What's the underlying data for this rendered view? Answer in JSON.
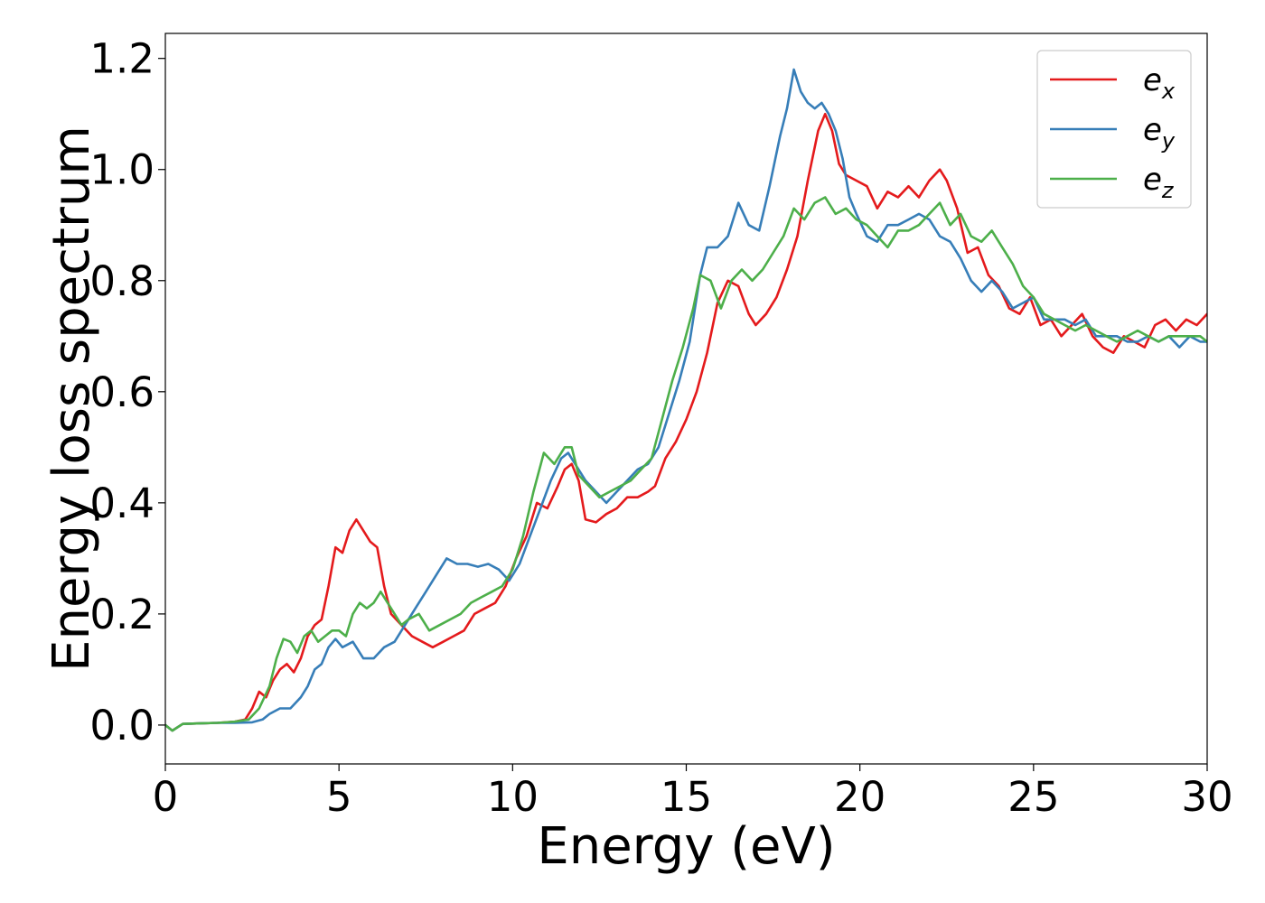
{
  "chart_data": {
    "type": "line",
    "title": "",
    "xlabel": "Energy (eV)",
    "ylabel": "Energy loss spectrum",
    "xlim": [
      0,
      30
    ],
    "ylim": [
      -0.07,
      1.245
    ],
    "grid": false,
    "legend_position": "top-right",
    "xticks": [
      0,
      5,
      10,
      15,
      20,
      25,
      30
    ],
    "xtick_labels": [
      "0",
      "5",
      "10",
      "15",
      "20",
      "25",
      "30"
    ],
    "yticks": [
      0.0,
      0.2,
      0.4,
      0.6,
      0.8,
      1.0,
      1.2
    ],
    "ytick_labels": [
      "0.0",
      "0.2",
      "0.4",
      "0.6",
      "0.8",
      "1.0",
      "1.2"
    ],
    "series": [
      {
        "name": "e",
        "subscript": "x",
        "color": "#e41a1c",
        "x": [
          0,
          0.2,
          0.5,
          1.0,
          1.5,
          2.0,
          2.3,
          2.5,
          2.7,
          2.9,
          3.1,
          3.3,
          3.5,
          3.7,
          3.9,
          4.1,
          4.3,
          4.5,
          4.7,
          4.9,
          5.1,
          5.3,
          5.5,
          5.7,
          5.9,
          6.1,
          6.3,
          6.5,
          6.8,
          7.1,
          7.4,
          7.7,
          8.0,
          8.3,
          8.6,
          8.9,
          9.2,
          9.5,
          9.8,
          10.1,
          10.4,
          10.7,
          11.0,
          11.3,
          11.5,
          11.7,
          11.9,
          12.1,
          12.4,
          12.7,
          13.0,
          13.3,
          13.6,
          13.9,
          14.1,
          14.4,
          14.7,
          15.0,
          15.3,
          15.6,
          15.9,
          16.2,
          16.5,
          16.8,
          17.0,
          17.3,
          17.6,
          17.9,
          18.2,
          18.5,
          18.8,
          19.0,
          19.2,
          19.4,
          19.6,
          19.9,
          20.2,
          20.5,
          20.8,
          21.1,
          21.4,
          21.7,
          22.0,
          22.3,
          22.5,
          22.8,
          23.1,
          23.4,
          23.7,
          24.0,
          24.3,
          24.6,
          24.9,
          25.2,
          25.5,
          25.8,
          26.1,
          26.4,
          26.7,
          27.0,
          27.3,
          27.6,
          27.9,
          28.2,
          28.5,
          28.8,
          29.1,
          29.4,
          29.7,
          30.0
        ],
        "y": [
          0.0,
          -0.01,
          0.002,
          0.003,
          0.004,
          0.006,
          0.01,
          0.03,
          0.06,
          0.05,
          0.08,
          0.1,
          0.11,
          0.095,
          0.12,
          0.16,
          0.18,
          0.19,
          0.25,
          0.32,
          0.31,
          0.35,
          0.37,
          0.35,
          0.33,
          0.32,
          0.25,
          0.2,
          0.18,
          0.16,
          0.15,
          0.14,
          0.15,
          0.16,
          0.17,
          0.2,
          0.21,
          0.22,
          0.25,
          0.3,
          0.34,
          0.4,
          0.39,
          0.43,
          0.46,
          0.47,
          0.44,
          0.37,
          0.365,
          0.38,
          0.39,
          0.41,
          0.41,
          0.42,
          0.43,
          0.48,
          0.51,
          0.55,
          0.6,
          0.67,
          0.76,
          0.8,
          0.79,
          0.74,
          0.72,
          0.74,
          0.77,
          0.82,
          0.88,
          0.98,
          1.07,
          1.1,
          1.07,
          1.01,
          0.99,
          0.98,
          0.97,
          0.93,
          0.96,
          0.95,
          0.97,
          0.95,
          0.98,
          1.0,
          0.98,
          0.93,
          0.85,
          0.86,
          0.81,
          0.79,
          0.75,
          0.74,
          0.77,
          0.72,
          0.73,
          0.7,
          0.72,
          0.74,
          0.7,
          0.68,
          0.67,
          0.7,
          0.69,
          0.68,
          0.72,
          0.73,
          0.71,
          0.73,
          0.72,
          0.74
        ]
      },
      {
        "name": "e",
        "subscript": "y",
        "color": "#377eb8",
        "x": [
          0,
          0.2,
          0.5,
          1.0,
          1.5,
          2.0,
          2.5,
          2.8,
          3.0,
          3.3,
          3.6,
          3.9,
          4.1,
          4.3,
          4.5,
          4.7,
          4.9,
          5.1,
          5.4,
          5.7,
          6.0,
          6.3,
          6.6,
          6.9,
          7.2,
          7.5,
          7.8,
          8.1,
          8.4,
          8.7,
          9.0,
          9.3,
          9.6,
          9.9,
          10.2,
          10.5,
          10.8,
          11.1,
          11.4,
          11.6,
          11.8,
          12.1,
          12.4,
          12.7,
          13.0,
          13.3,
          13.6,
          13.9,
          14.2,
          14.5,
          14.8,
          15.1,
          15.4,
          15.6,
          15.9,
          16.2,
          16.5,
          16.8,
          17.1,
          17.4,
          17.7,
          17.9,
          18.1,
          18.3,
          18.5,
          18.7,
          18.9,
          19.1,
          19.3,
          19.5,
          19.7,
          19.9,
          20.2,
          20.5,
          20.8,
          21.1,
          21.4,
          21.7,
          22.0,
          22.3,
          22.6,
          22.9,
          23.2,
          23.5,
          23.8,
          24.1,
          24.4,
          24.7,
          25.0,
          25.3,
          25.6,
          25.9,
          26.2,
          26.5,
          26.8,
          27.1,
          27.4,
          27.7,
          28.0,
          28.3,
          28.6,
          28.9,
          29.2,
          29.5,
          29.8,
          30.0
        ],
        "y": [
          0.0,
          -0.01,
          0.002,
          0.003,
          0.004,
          0.004,
          0.005,
          0.01,
          0.02,
          0.03,
          0.03,
          0.05,
          0.07,
          0.1,
          0.11,
          0.14,
          0.155,
          0.14,
          0.15,
          0.12,
          0.12,
          0.14,
          0.15,
          0.18,
          0.21,
          0.24,
          0.27,
          0.3,
          0.29,
          0.29,
          0.285,
          0.29,
          0.28,
          0.26,
          0.29,
          0.34,
          0.39,
          0.44,
          0.48,
          0.49,
          0.47,
          0.44,
          0.42,
          0.4,
          0.42,
          0.44,
          0.46,
          0.47,
          0.5,
          0.56,
          0.62,
          0.69,
          0.81,
          0.86,
          0.86,
          0.88,
          0.94,
          0.9,
          0.89,
          0.97,
          1.06,
          1.11,
          1.18,
          1.14,
          1.12,
          1.11,
          1.12,
          1.1,
          1.07,
          1.02,
          0.95,
          0.92,
          0.88,
          0.87,
          0.9,
          0.9,
          0.91,
          0.92,
          0.91,
          0.88,
          0.87,
          0.84,
          0.8,
          0.78,
          0.8,
          0.78,
          0.75,
          0.76,
          0.77,
          0.73,
          0.73,
          0.73,
          0.72,
          0.73,
          0.7,
          0.7,
          0.7,
          0.69,
          0.69,
          0.7,
          0.69,
          0.7,
          0.68,
          0.7,
          0.69,
          0.69
        ]
      },
      {
        "name": "e",
        "subscript": "z",
        "color": "#4daf4a",
        "x": [
          0,
          0.2,
          0.5,
          1.0,
          1.5,
          2.0,
          2.4,
          2.7,
          3.0,
          3.2,
          3.4,
          3.6,
          3.8,
          4.0,
          4.2,
          4.4,
          4.6,
          4.8,
          5.0,
          5.2,
          5.4,
          5.6,
          5.8,
          6.0,
          6.2,
          6.5,
          6.8,
          7.0,
          7.3,
          7.6,
          7.9,
          8.2,
          8.5,
          8.8,
          9.1,
          9.4,
          9.7,
          10.0,
          10.3,
          10.6,
          10.9,
          11.2,
          11.5,
          11.7,
          11.9,
          12.2,
          12.5,
          12.8,
          13.1,
          13.4,
          13.7,
          14.0,
          14.3,
          14.6,
          14.9,
          15.2,
          15.4,
          15.7,
          16.0,
          16.3,
          16.6,
          16.9,
          17.2,
          17.5,
          17.8,
          18.1,
          18.4,
          18.7,
          19.0,
          19.3,
          19.6,
          19.9,
          20.2,
          20.5,
          20.8,
          21.1,
          21.4,
          21.7,
          22.0,
          22.3,
          22.6,
          22.9,
          23.2,
          23.5,
          23.8,
          24.1,
          24.4,
          24.7,
          25.0,
          25.3,
          25.6,
          25.9,
          26.2,
          26.5,
          26.8,
          27.1,
          27.4,
          27.7,
          28.0,
          28.3,
          28.6,
          28.9,
          29.2,
          29.5,
          29.8,
          30.0
        ],
        "y": [
          0.0,
          -0.01,
          0.002,
          0.003,
          0.004,
          0.006,
          0.01,
          0.03,
          0.07,
          0.12,
          0.155,
          0.15,
          0.13,
          0.16,
          0.17,
          0.15,
          0.16,
          0.17,
          0.17,
          0.16,
          0.2,
          0.22,
          0.21,
          0.22,
          0.24,
          0.21,
          0.18,
          0.19,
          0.2,
          0.17,
          0.18,
          0.19,
          0.2,
          0.22,
          0.23,
          0.24,
          0.25,
          0.28,
          0.34,
          0.42,
          0.49,
          0.47,
          0.5,
          0.5,
          0.45,
          0.43,
          0.41,
          0.42,
          0.43,
          0.44,
          0.46,
          0.48,
          0.55,
          0.62,
          0.68,
          0.75,
          0.81,
          0.8,
          0.75,
          0.8,
          0.82,
          0.8,
          0.82,
          0.85,
          0.88,
          0.93,
          0.91,
          0.94,
          0.95,
          0.92,
          0.93,
          0.91,
          0.9,
          0.88,
          0.86,
          0.89,
          0.89,
          0.9,
          0.92,
          0.94,
          0.9,
          0.92,
          0.88,
          0.87,
          0.89,
          0.86,
          0.83,
          0.79,
          0.77,
          0.74,
          0.73,
          0.72,
          0.71,
          0.72,
          0.71,
          0.7,
          0.69,
          0.7,
          0.71,
          0.7,
          0.69,
          0.7,
          0.7,
          0.7,
          0.7,
          0.69
        ]
      }
    ]
  }
}
